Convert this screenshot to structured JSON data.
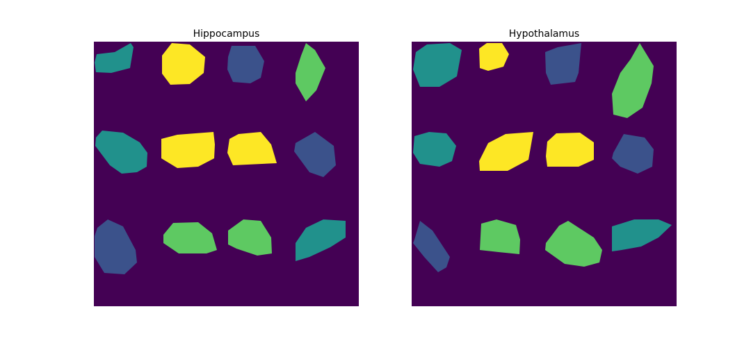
{
  "colors": {
    "background": "#440154",
    "label_1": "#3b528b",
    "label_2": "#21918c",
    "label_3": "#5ec962",
    "label_4": "#fde725"
  },
  "chart_data": [
    {
      "type": "heatmap",
      "title": "Hippocampus",
      "colormap": "viridis",
      "axes": "off",
      "grid": false,
      "value_range": [
        0,
        4
      ],
      "regions": [
        {
          "label": 2,
          "points": [
            [
              4,
              18
            ],
            [
              30,
              15
            ],
            [
              53,
              2
            ],
            [
              57,
              8
            ],
            [
              52,
              38
            ],
            [
              25,
              45
            ],
            [
              3,
              44
            ],
            [
              1,
              30
            ]
          ]
        },
        {
          "label": 4,
          "points": [
            [
              98,
              20
            ],
            [
              112,
              2
            ],
            [
              138,
              4
            ],
            [
              160,
              22
            ],
            [
              158,
              45
            ],
            [
              138,
              61
            ],
            [
              110,
              62
            ],
            [
              98,
              46
            ]
          ]
        },
        {
          "label": 1,
          "points": [
            [
              193,
              22
            ],
            [
              198,
              6
            ],
            [
              232,
              6
            ],
            [
              245,
              28
            ],
            [
              240,
              52
            ],
            [
              225,
              60
            ],
            [
              200,
              58
            ],
            [
              192,
              40
            ]
          ]
        },
        {
          "label": 3,
          "points": [
            [
              305,
              2
            ],
            [
              318,
              12
            ],
            [
              333,
              38
            ],
            [
              320,
              70
            ],
            [
              305,
              86
            ],
            [
              290,
              60
            ],
            [
              290,
              45
            ],
            [
              298,
              20
            ]
          ]
        },
        {
          "label": 2,
          "points": [
            [
              3,
              138
            ],
            [
              12,
              128
            ],
            [
              42,
              131
            ],
            [
              66,
              145
            ],
            [
              77,
              160
            ],
            [
              76,
              180
            ],
            [
              62,
              188
            ],
            [
              40,
              190
            ],
            [
              23,
              178
            ],
            [
              2,
              150
            ]
          ]
        },
        {
          "label": 4,
          "points": [
            [
              97,
              140
            ],
            [
              120,
              134
            ],
            [
              172,
              130
            ],
            [
              174,
              148
            ],
            [
              173,
              168
            ],
            [
              150,
              180
            ],
            [
              120,
              182
            ],
            [
              97,
              168
            ]
          ]
        },
        {
          "label": 4,
          "points": [
            [
              195,
              140
            ],
            [
              208,
              133
            ],
            [
              240,
              130
            ],
            [
              255,
              148
            ],
            [
              263,
              175
            ],
            [
              200,
              178
            ],
            [
              192,
              160
            ]
          ]
        },
        {
          "label": 1,
          "points": [
            [
              290,
              146
            ],
            [
              318,
              130
            ],
            [
              345,
              150
            ],
            [
              348,
              178
            ],
            [
              330,
              195
            ],
            [
              310,
              188
            ],
            [
              288,
              158
            ]
          ]
        },
        {
          "label": 1,
          "points": [
            [
              5,
              268
            ],
            [
              20,
              256
            ],
            [
              42,
              266
            ],
            [
              60,
              300
            ],
            [
              62,
              318
            ],
            [
              44,
              335
            ],
            [
              15,
              333
            ],
            [
              1,
              310
            ],
            [
              1,
              280
            ]
          ]
        },
        {
          "label": 3,
          "points": [
            [
              100,
              278
            ],
            [
              114,
              261
            ],
            [
              150,
              260
            ],
            [
              170,
              276
            ],
            [
              177,
              300
            ],
            [
              162,
              305
            ],
            [
              122,
              305
            ],
            [
              100,
              290
            ]
          ]
        },
        {
          "label": 3,
          "points": [
            [
              193,
              272
            ],
            [
              215,
              256
            ],
            [
              240,
              258
            ],
            [
              255,
              282
            ],
            [
              256,
              305
            ],
            [
              235,
              308
            ],
            [
              205,
              298
            ],
            [
              193,
              292
            ]
          ]
        },
        {
          "label": 2,
          "points": [
            [
              290,
              290
            ],
            [
              305,
              268
            ],
            [
              330,
              256
            ],
            [
              362,
              258
            ],
            [
              362,
              282
            ],
            [
              340,
              296
            ],
            [
              310,
              310
            ],
            [
              290,
              316
            ]
          ]
        }
      ]
    },
    {
      "type": "heatmap",
      "title": "Hypothalamus",
      "colormap": "viridis",
      "axes": "off",
      "grid": false,
      "value_range": [
        0,
        4
      ],
      "regions": [
        {
          "label": 2,
          "points": [
            [
              6,
              15
            ],
            [
              22,
              4
            ],
            [
              55,
              2
            ],
            [
              72,
              12
            ],
            [
              65,
              50
            ],
            [
              40,
              65
            ],
            [
              12,
              65
            ],
            [
              2,
              40
            ]
          ]
        },
        {
          "label": 4,
          "points": [
            [
              97,
              10
            ],
            [
              108,
              2
            ],
            [
              130,
              2
            ],
            [
              140,
              18
            ],
            [
              132,
              36
            ],
            [
              110,
              42
            ],
            [
              98,
              38
            ]
          ]
        },
        {
          "label": 1,
          "points": [
            [
              192,
              15
            ],
            [
              210,
              8
            ],
            [
              244,
              2
            ],
            [
              240,
              45
            ],
            [
              235,
              58
            ],
            [
              200,
              62
            ],
            [
              193,
              45
            ]
          ]
        },
        {
          "label": 3,
          "points": [
            [
              328,
              2
            ],
            [
              348,
              35
            ],
            [
              345,
              60
            ],
            [
              332,
              95
            ],
            [
              310,
              110
            ],
            [
              290,
              105
            ],
            [
              288,
              75
            ],
            [
              300,
              45
            ],
            [
              315,
              25
            ]
          ]
        },
        {
          "label": 2,
          "points": [
            [
              4,
              136
            ],
            [
              25,
              130
            ],
            [
              50,
              132
            ],
            [
              64,
              150
            ],
            [
              58,
              172
            ],
            [
              40,
              180
            ],
            [
              12,
              176
            ],
            [
              2,
              160
            ]
          ]
        },
        {
          "label": 4,
          "points": [
            [
              97,
              172
            ],
            [
              110,
              146
            ],
            [
              135,
              133
            ],
            [
              175,
              130
            ],
            [
              168,
              170
            ],
            [
              138,
              186
            ],
            [
              98,
              186
            ]
          ]
        },
        {
          "label": 4,
          "points": [
            [
              195,
              144
            ],
            [
              208,
              132
            ],
            [
              242,
              131
            ],
            [
              262,
              145
            ],
            [
              262,
              170
            ],
            [
              240,
              180
            ],
            [
              195,
              180
            ],
            [
              193,
              165
            ]
          ]
        },
        {
          "label": 1,
          "points": [
            [
              290,
              160
            ],
            [
              305,
              133
            ],
            [
              335,
              138
            ],
            [
              348,
              155
            ],
            [
              346,
              180
            ],
            [
              325,
              190
            ],
            [
              300,
              180
            ],
            [
              288,
              168
            ]
          ]
        },
        {
          "label": 1,
          "points": [
            [
              4,
              285
            ],
            [
              12,
              258
            ],
            [
              30,
              272
            ],
            [
              55,
              310
            ],
            [
              50,
              325
            ],
            [
              38,
              332
            ],
            [
              18,
              310
            ],
            [
              2,
              290
            ]
          ]
        },
        {
          "label": 3,
          "points": [
            [
              100,
              262
            ],
            [
              122,
              256
            ],
            [
              150,
              264
            ],
            [
              156,
              285
            ],
            [
              155,
              306
            ],
            [
              125,
              303
            ],
            [
              98,
              300
            ]
          ]
        },
        {
          "label": 3,
          "points": [
            [
              193,
              290
            ],
            [
              212,
              265
            ],
            [
              225,
              258
            ],
            [
              262,
              282
            ],
            [
              274,
              300
            ],
            [
              270,
              318
            ],
            [
              248,
              324
            ],
            [
              220,
              320
            ],
            [
              192,
              300
            ]
          ]
        },
        {
          "label": 2,
          "points": [
            [
              288,
              266
            ],
            [
              320,
              256
            ],
            [
              355,
              256
            ],
            [
              374,
              264
            ],
            [
              355,
              282
            ],
            [
              330,
              295
            ],
            [
              302,
              300
            ],
            [
              288,
              302
            ]
          ]
        }
      ]
    }
  ]
}
